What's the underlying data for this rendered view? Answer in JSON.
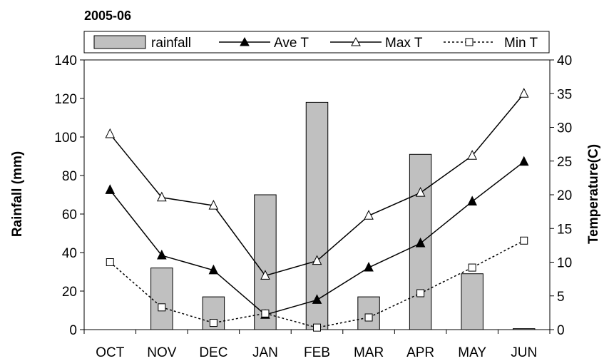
{
  "chart_data": {
    "type": "bar+line",
    "title": "2005-06",
    "categories": [
      "OCT",
      "NOV",
      "DEC",
      "JAN",
      "FEB",
      "MAR",
      "APR",
      "MAY",
      "JUN"
    ],
    "ylabel_left": "Rainfall (mm)",
    "ylabel_right": "Temperature(C)",
    "ylim_left": [
      0,
      140
    ],
    "ylim_right": [
      0,
      40
    ],
    "yticks_left": [
      "0",
      "20",
      "40",
      "60",
      "80",
      "100",
      "120",
      "140"
    ],
    "yticks_right": [
      "0",
      "5",
      "10",
      "15",
      "20",
      "25",
      "30",
      "35",
      "40"
    ],
    "bar_series": {
      "name": "rainfall",
      "axis": "left",
      "values": [
        0,
        32,
        17,
        70,
        118,
        17,
        91,
        29,
        0.5
      ],
      "color": "#c0c0c0"
    },
    "line_series": [
      {
        "name": "Ave T",
        "axis": "right",
        "marker": "filled-triangle",
        "dash": "solid",
        "values": [
          20.7,
          11.0,
          8.8,
          2.2,
          4.4,
          9.2,
          12.8,
          19.0,
          24.9
        ]
      },
      {
        "name": "Max T",
        "axis": "right",
        "marker": "open-triangle",
        "dash": "solid",
        "values": [
          29.0,
          19.6,
          18.4,
          8.0,
          10.2,
          16.9,
          20.3,
          25.8,
          35.0
        ]
      },
      {
        "name": "Min T",
        "axis": "right",
        "marker": "open-square",
        "dash": "dotted",
        "values": [
          10.0,
          3.3,
          1.0,
          2.4,
          0.3,
          1.8,
          5.4,
          9.2,
          13.2
        ]
      }
    ],
    "legend_position": "top",
    "grid": false
  }
}
